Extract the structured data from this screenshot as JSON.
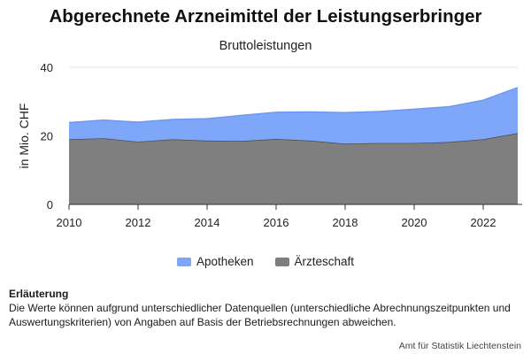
{
  "header": {
    "title": "Abgerechnete Arzneimittel der Leistungserbringer",
    "subtitle": "Bruttoleistungen"
  },
  "chart_data": {
    "type": "area",
    "stacked": true,
    "x": [
      2010,
      2011,
      2012,
      2013,
      2014,
      2015,
      2016,
      2017,
      2018,
      2019,
      2020,
      2021,
      2022,
      2023
    ],
    "series": [
      {
        "name": "Ärzteschaft",
        "color": "#7f7f7f",
        "values": [
          19.0,
          19.3,
          18.3,
          19.0,
          18.6,
          18.5,
          19.1,
          18.6,
          17.7,
          17.9,
          17.9,
          18.2,
          19.0,
          20.8
        ]
      },
      {
        "name": "Apotheken",
        "color": "#7ea6f9",
        "values": [
          4.9,
          5.3,
          5.7,
          5.8,
          6.4,
          7.5,
          7.8,
          8.4,
          9.1,
          9.2,
          9.9,
          10.3,
          11.4,
          13.3
        ]
      }
    ],
    "xlabel": "",
    "ylabel": "in Mio. CHF",
    "ylim": [
      0,
      40
    ],
    "yticks": [
      0,
      20,
      40
    ],
    "xticks": [
      2010,
      2012,
      2014,
      2016,
      2018,
      2020,
      2022
    ],
    "xlim": [
      2010,
      2023
    ],
    "grid": "horizontal",
    "legend_position": "bottom"
  },
  "legend": {
    "items": [
      {
        "label": "Apotheken",
        "color": "#7ea6f9"
      },
      {
        "label": "Ärzteschaft",
        "color": "#7f7f7f"
      }
    ]
  },
  "note": {
    "heading": "Erläuterung",
    "text": "Die Werte können aufgrund unterschiedlicher Datenquellen (unterschiedliche Abrechnungszeitpunkten und Auswertungskriterien) von Angaben auf Basis der Betriebsrechnungen abweichen."
  },
  "source": "Amt für Statistik Liechtenstein"
}
